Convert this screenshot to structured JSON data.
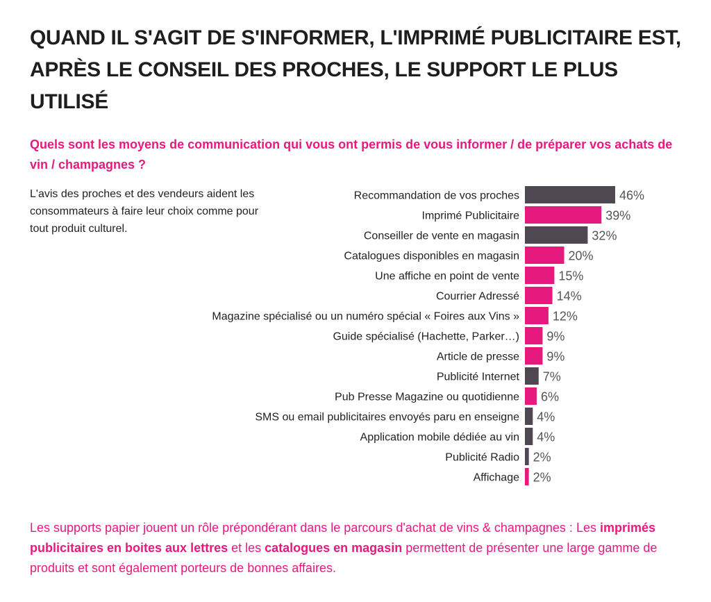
{
  "title": "QUAND IL S'AGIT DE S'INFORMER, L'IMPRIMÉ PUBLICITAIRE EST, APRÈS LE CONSEIL DES PROCHES, LE SUPPORT LE PLUS UTILISÉ",
  "question": "Quels sont les moyens de communication qui vous ont permis de vous informer / de préparer vos achats de vin / champagnes ?",
  "note": "L'avis des proches et des vendeurs aident les consommateurs à faire leur choix comme pour tout produit culturel.",
  "conclusion": {
    "part1": "Les supports papier jouent un rôle prépondérant dans le parcours d'achat de vins & champagnes : Les ",
    "bold1": "imprimés publicitaires en boites aux lettres",
    "part2": " et les ",
    "bold2": "catalogues en magasin",
    "part3": " permettent de présenter une large gamme de produits et sont également porteurs de bonnes affaires."
  },
  "colors": {
    "pink": "#e6197f",
    "dark": "#4f4752",
    "text": "#222222",
    "label": "#555555"
  },
  "chart_data": {
    "type": "bar",
    "orientation": "horizontal",
    "categories": [
      "Recommandation de vos proches",
      "Imprimé Publicitaire",
      "Conseiller de vente en magasin",
      "Catalogues disponibles en magasin",
      "Une affiche en point de vente",
      "Courrier Adressé",
      "Magazine spécialisé ou un numéro spécial « Foires aux Vins »",
      "Guide spécialisé (Hachette, Parker…)",
      "Article de presse",
      "Publicité Internet",
      "Pub Presse Magazine ou quotidienne",
      "SMS ou email publicitaires envoyés paru en enseigne",
      "Application mobile dédiée au vin",
      "Publicité Radio",
      "Affichage"
    ],
    "values": [
      46,
      39,
      32,
      20,
      15,
      14,
      12,
      9,
      9,
      7,
      6,
      4,
      4,
      2,
      2
    ],
    "value_labels": [
      "46%",
      "39%",
      "32%",
      "20%",
      "15%",
      "14%",
      "12%",
      "9%",
      "9%",
      "7%",
      "6%",
      "4%",
      "4%",
      "2%",
      "2%"
    ],
    "bar_colors": [
      "dark",
      "pink",
      "dark",
      "pink",
      "pink",
      "pink",
      "pink",
      "pink",
      "pink",
      "dark",
      "pink",
      "dark",
      "dark",
      "dark",
      "pink"
    ],
    "unit": "%",
    "xlim": [
      0,
      46
    ]
  }
}
